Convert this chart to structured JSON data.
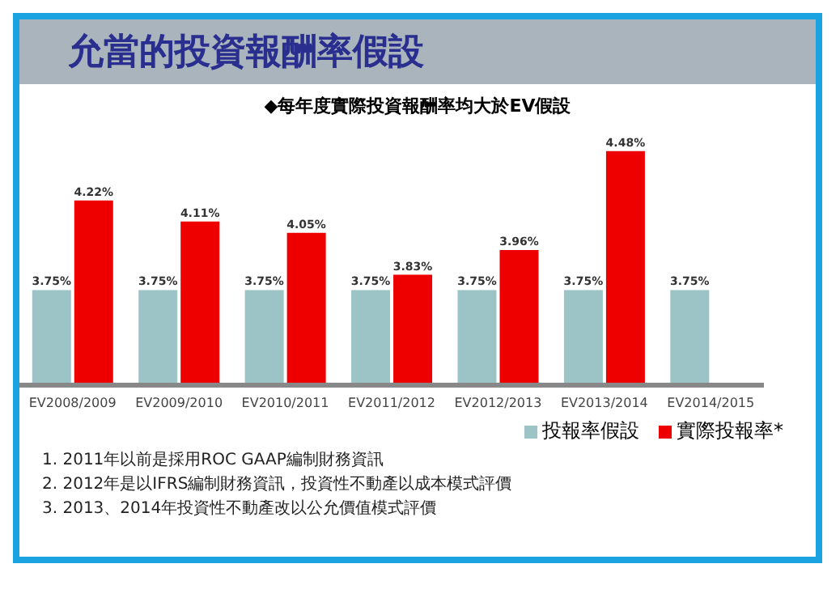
{
  "chart_data": {
    "type": "bar",
    "title": "允當的投資報酬率假設",
    "subtitle": "◆每年度實際投資報酬率均大於EV假設",
    "categories": [
      "EV2008/2009",
      "EV2009/2010",
      "EV2010/2011",
      "EV2011/2012",
      "EV2012/2013",
      "EV2013/2014",
      "EV2014/2015"
    ],
    "series": [
      {
        "name": "投報率假設",
        "color": "#9cc4c6",
        "values": [
          3.75,
          3.75,
          3.75,
          3.75,
          3.75,
          3.75,
          3.75
        ],
        "value_labels": [
          "3.75%",
          "3.75%",
          "3.75%",
          "3.75%",
          "3.75%",
          "3.75%",
          "3.75%"
        ]
      },
      {
        "name": "實際投報率*",
        "color": "#ee0000",
        "values": [
          4.22,
          4.11,
          4.05,
          3.83,
          3.96,
          4.48,
          null
        ],
        "value_labels": [
          "4.22%",
          "4.11%",
          "4.05%",
          "3.83%",
          "3.96%",
          "4.48%",
          null
        ]
      }
    ],
    "ylim": [
      3.25,
      4.5
    ],
    "tick_labels": "x",
    "grid": false,
    "legend": "bottom right",
    "annotations": [
      "1. 2011年以前是採用ROC GAAP編制財務資訊",
      "2. 2012年是以IFRS編制財務資訊，投資性不動產以成本模式評價",
      "3. 2013、2014年投資性不動產改以公允價值模式評價"
    ]
  }
}
